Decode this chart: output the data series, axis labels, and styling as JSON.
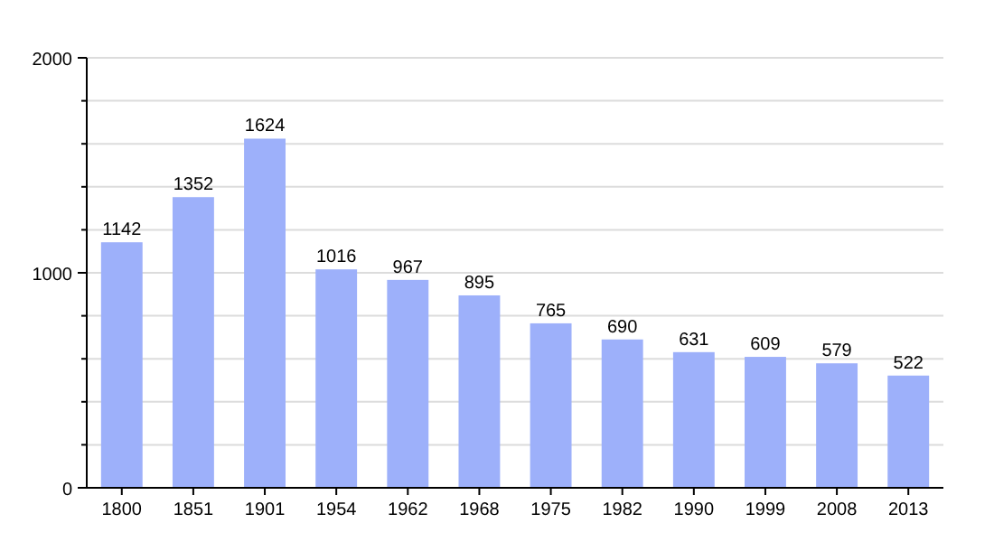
{
  "chart_data": {
    "type": "bar",
    "categories": [
      "1800",
      "1851",
      "1901",
      "1954",
      "1962",
      "1968",
      "1975",
      "1982",
      "1990",
      "1999",
      "2008",
      "2013"
    ],
    "values": [
      1142,
      1352,
      1624,
      1016,
      967,
      895,
      765,
      690,
      631,
      609,
      579,
      522
    ],
    "color": "#9db0fa",
    "ylim": [
      0,
      2000
    ],
    "yticks": [
      0,
      {
        "value": 200,
        "label": null
      },
      {
        "value": 400,
        "label": null
      },
      {
        "value": 600,
        "label": null
      },
      {
        "value": 800,
        "label": null
      },
      1000,
      {
        "value": 1200,
        "label": null
      },
      {
        "value": 1400,
        "label": null
      },
      {
        "value": 1600,
        "label": null
      },
      {
        "value": 1800,
        "label": null
      },
      2000
    ],
    "grid": true,
    "data_labels": true
  }
}
